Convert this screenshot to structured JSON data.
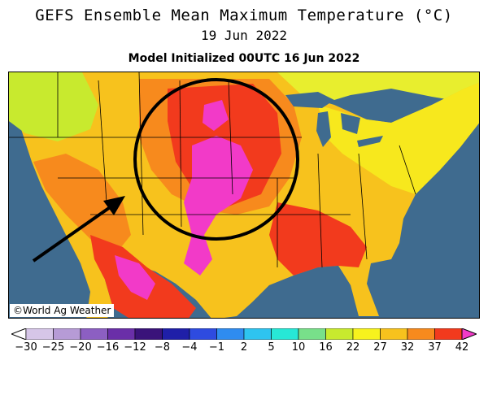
{
  "header": {
    "title": "GEFS Ensemble Mean Maximum Temperature (°C)",
    "valid_date": "19 Jun 2022",
    "init": "Model Initialized 00UTC 16 Jun 2022"
  },
  "credit": "©World Ag Weather",
  "colorbar": {
    "labels": [
      "−30",
      "−25",
      "−20",
      "−16",
      "−12",
      "−8",
      "−4",
      "−1",
      "2",
      "5",
      "10",
      "16",
      "22",
      "27",
      "32",
      "37",
      "42"
    ],
    "colors": [
      "#d6c6e8",
      "#b69bd6",
      "#8c5fc2",
      "#6a2fa8",
      "#3a137a",
      "#1f1fa8",
      "#2e4be0",
      "#2f8cf0",
      "#2ec4f0",
      "#27e8d6",
      "#78e08a",
      "#c8ea2e",
      "#f7f21d",
      "#f7c21d",
      "#f78a1d",
      "#f23a1d",
      "#f23ac8"
    ]
  },
  "annotation": {
    "circle_color": "#000000",
    "arrow_color": "#000000"
  }
}
